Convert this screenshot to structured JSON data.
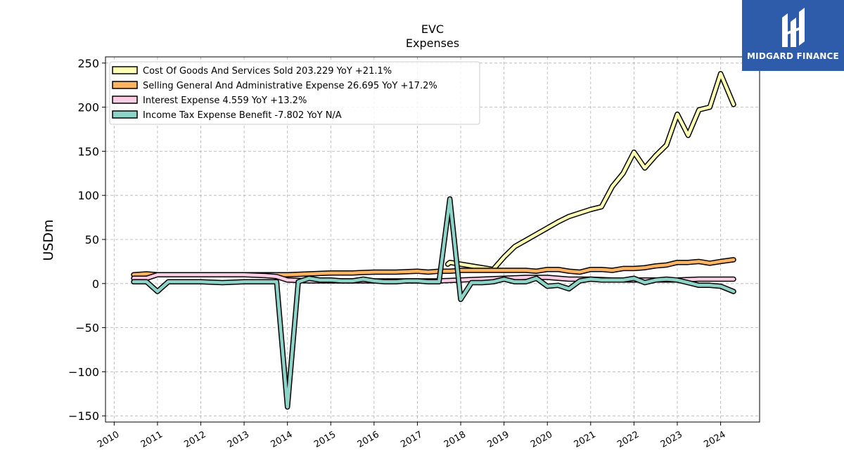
{
  "brand": {
    "name": "MIDGARD FINANCE",
    "color": "#2f5caa",
    "icon": "midgard-logo-icon"
  },
  "chart_data": {
    "type": "line",
    "title": "EVC",
    "subtitle": "Expenses",
    "ylabel": "USDm",
    "xlabel": "",
    "ylim": [
      -157,
      257
    ],
    "xlim": [
      2009.8,
      2024.9
    ],
    "yticks": [
      250,
      200,
      150,
      100,
      50,
      0,
      -50,
      -100,
      -150
    ],
    "ytick_labels": [
      "250",
      "200",
      "150",
      "100",
      "50",
      "0",
      "−50",
      "−100",
      "−150"
    ],
    "xticks": [
      2010,
      2011,
      2012,
      2013,
      2014,
      2015,
      2016,
      2017,
      2018,
      2019,
      2020,
      2021,
      2022,
      2023,
      2024
    ],
    "xtick_labels": [
      "2010",
      "2011",
      "2012",
      "2013",
      "2014",
      "2015",
      "2016",
      "2017",
      "2018",
      "2019",
      "2020",
      "2021",
      "2022",
      "2023",
      "2024"
    ],
    "grid": true,
    "legend_position": "top-left",
    "series": [
      {
        "name": "Cost Of Goods And Services Sold",
        "legend": "Cost Of Goods And Services Sold  203.229 YoY +21.1%",
        "color": "#ffffb3",
        "points": [
          [
            2017.7,
            22
          ],
          [
            2017.75,
            24
          ],
          [
            2018.75,
            16
          ],
          [
            2019.0,
            30
          ],
          [
            2019.25,
            42
          ],
          [
            2019.5,
            49
          ],
          [
            2019.75,
            56
          ],
          [
            2020.0,
            63
          ],
          [
            2020.25,
            70
          ],
          [
            2020.5,
            76
          ],
          [
            2020.75,
            80
          ],
          [
            2021.0,
            84
          ],
          [
            2021.25,
            87
          ],
          [
            2021.5,
            110
          ],
          [
            2021.75,
            125
          ],
          [
            2022.0,
            149
          ],
          [
            2022.25,
            131
          ],
          [
            2022.5,
            145
          ],
          [
            2022.75,
            157
          ],
          [
            2023.0,
            192
          ],
          [
            2023.25,
            168
          ],
          [
            2023.5,
            197
          ],
          [
            2023.75,
            200
          ],
          [
            2024.0,
            238
          ],
          [
            2024.3,
            203
          ]
        ]
      },
      {
        "name": "Selling General And Administrative Expense",
        "legend": "Selling General And Administrative Expense  26.695 YoY +17.2%",
        "color": "#fdb462",
        "points": [
          [
            2010.45,
            10
          ],
          [
            2010.75,
            11
          ],
          [
            2011.0,
            10
          ],
          [
            2011.5,
            10
          ],
          [
            2012.0,
            10
          ],
          [
            2012.5,
            10
          ],
          [
            2013.0,
            10
          ],
          [
            2013.5,
            10
          ],
          [
            2014.0,
            10
          ],
          [
            2014.5,
            11
          ],
          [
            2015.0,
            12
          ],
          [
            2015.25,
            12
          ],
          [
            2015.5,
            12
          ],
          [
            2016.0,
            13
          ],
          [
            2016.5,
            13
          ],
          [
            2017.0,
            14
          ],
          [
            2017.25,
            13
          ],
          [
            2017.5,
            14
          ],
          [
            2017.75,
            14
          ],
          [
            2018.0,
            15
          ],
          [
            2018.5,
            15
          ],
          [
            2018.75,
            15
          ],
          [
            2019.0,
            15
          ],
          [
            2019.25,
            15
          ],
          [
            2019.5,
            15
          ],
          [
            2019.75,
            14
          ],
          [
            2020.0,
            16
          ],
          [
            2020.25,
            16
          ],
          [
            2020.5,
            14
          ],
          [
            2020.75,
            13
          ],
          [
            2021.0,
            16
          ],
          [
            2021.25,
            16
          ],
          [
            2021.5,
            15
          ],
          [
            2021.75,
            17
          ],
          [
            2022.0,
            17
          ],
          [
            2022.25,
            18
          ],
          [
            2022.5,
            20
          ],
          [
            2022.75,
            21
          ],
          [
            2023.0,
            24
          ],
          [
            2023.25,
            24
          ],
          [
            2023.5,
            25
          ],
          [
            2023.75,
            23
          ],
          [
            2024.0,
            25
          ],
          [
            2024.3,
            27
          ]
        ]
      },
      {
        "name": "Interest Expense",
        "legend": "Interest Expense  4.559 YoY +13.2%",
        "color": "#fccde5",
        "points": [
          [
            2010.45,
            6
          ],
          [
            2010.75,
            6
          ],
          [
            2011.0,
            10
          ],
          [
            2011.5,
            10
          ],
          [
            2012.0,
            10
          ],
          [
            2012.5,
            10
          ],
          [
            2013.0,
            10
          ],
          [
            2013.5,
            9
          ],
          [
            2013.75,
            8
          ],
          [
            2014.0,
            4
          ],
          [
            2014.5,
            3
          ],
          [
            2015.0,
            3
          ],
          [
            2016.0,
            3
          ],
          [
            2017.0,
            3
          ],
          [
            2017.5,
            3
          ],
          [
            2018.0,
            4
          ],
          [
            2018.5,
            5
          ],
          [
            2019.0,
            6
          ],
          [
            2019.5,
            7
          ],
          [
            2020.0,
            7
          ],
          [
            2020.5,
            5
          ],
          [
            2021.0,
            5
          ],
          [
            2021.5,
            4
          ],
          [
            2022.0,
            4
          ],
          [
            2022.5,
            4
          ],
          [
            2023.0,
            4
          ],
          [
            2023.5,
            5
          ],
          [
            2024.0,
            5
          ],
          [
            2024.3,
            5
          ]
        ]
      },
      {
        "name": "Income Tax Expense Benefit",
        "legend": "Income Tax Expense Benefit  -7.802 YoY N/A",
        "color": "#8dd3c7",
        "points": [
          [
            2010.45,
            2
          ],
          [
            2010.75,
            2
          ],
          [
            2011.0,
            -9
          ],
          [
            2011.25,
            2
          ],
          [
            2011.5,
            2
          ],
          [
            2011.75,
            2
          ],
          [
            2012.0,
            2
          ],
          [
            2012.5,
            1
          ],
          [
            2013.0,
            2
          ],
          [
            2013.5,
            2
          ],
          [
            2013.75,
            2
          ],
          [
            2014.0,
            -140
          ],
          [
            2014.25,
            2
          ],
          [
            2014.5,
            6
          ],
          [
            2014.75,
            4
          ],
          [
            2015.0,
            4
          ],
          [
            2015.25,
            3
          ],
          [
            2015.5,
            3
          ],
          [
            2015.75,
            5
          ],
          [
            2016.0,
            3
          ],
          [
            2016.25,
            2
          ],
          [
            2016.5,
            2
          ],
          [
            2016.75,
            3
          ],
          [
            2017.0,
            3
          ],
          [
            2017.25,
            2
          ],
          [
            2017.5,
            2
          ],
          [
            2017.75,
            96
          ],
          [
            2018.0,
            -18
          ],
          [
            2018.25,
            1
          ],
          [
            2018.5,
            1
          ],
          [
            2018.75,
            2
          ],
          [
            2019.0,
            5
          ],
          [
            2019.25,
            2
          ],
          [
            2019.5,
            2
          ],
          [
            2019.75,
            6
          ],
          [
            2020.0,
            -3
          ],
          [
            2020.25,
            -2
          ],
          [
            2020.5,
            -6
          ],
          [
            2020.75,
            3
          ],
          [
            2021.0,
            5
          ],
          [
            2021.25,
            4
          ],
          [
            2021.5,
            4
          ],
          [
            2021.75,
            4
          ],
          [
            2022.0,
            6
          ],
          [
            2022.25,
            1
          ],
          [
            2022.5,
            4
          ],
          [
            2022.75,
            5
          ],
          [
            2023.0,
            4
          ],
          [
            2023.25,
            1
          ],
          [
            2023.5,
            -2
          ],
          [
            2023.75,
            -2
          ],
          [
            2024.0,
            -3
          ],
          [
            2024.3,
            -9
          ]
        ]
      }
    ]
  }
}
